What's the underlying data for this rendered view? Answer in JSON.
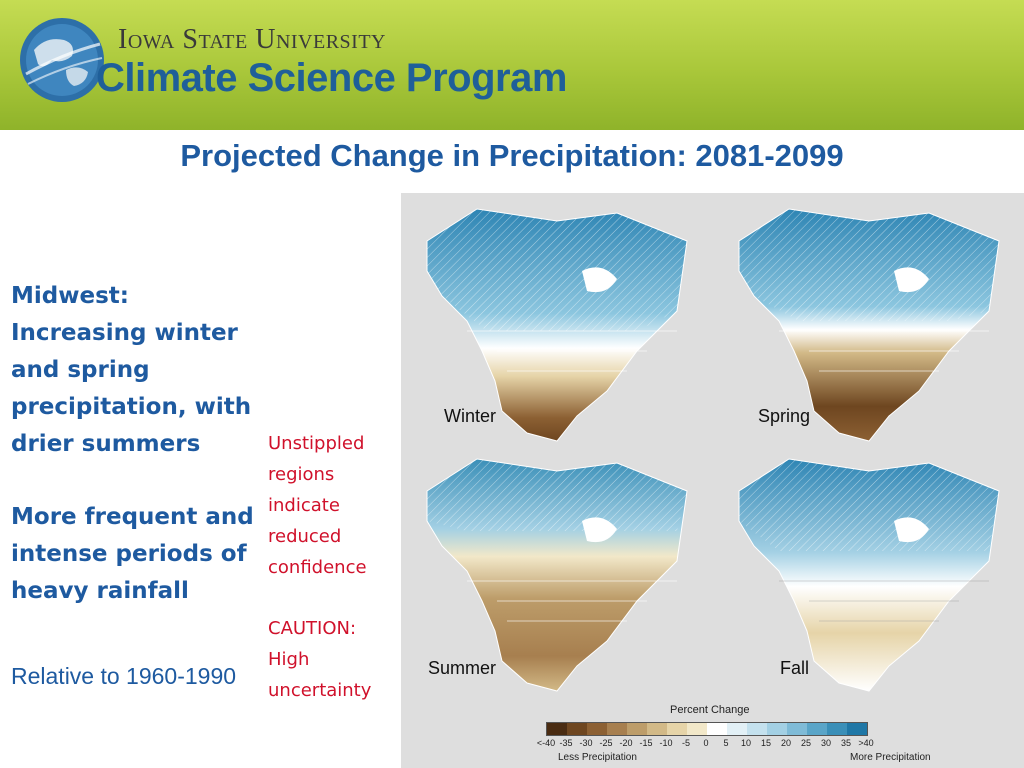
{
  "header": {
    "university": "Iowa State University",
    "program": "Climate Science Program"
  },
  "title": "Projected Change in Precipitation: 2081-2099",
  "left": {
    "heading": "Midwest:",
    "point1": "Increasing winter and spring precipitation, with drier summers",
    "point2": "More frequent and intense periods of heavy rainfall",
    "relative": "Relative to 1960-1990"
  },
  "notes": {
    "unstippled": "Unstippled regions indicate reduced confidence",
    "caution": "CAUTION: High uncertainty"
  },
  "maps": {
    "seasons": [
      "Winter",
      "Spring",
      "Summer",
      "Fall"
    ]
  },
  "legend": {
    "title": "Percent Change",
    "ticks": [
      "<-40",
      "-35",
      "-30",
      "-25",
      "-20",
      "-15",
      "-10",
      "-5",
      "0",
      "5",
      "10",
      "15",
      "20",
      "25",
      "30",
      "35",
      ">40"
    ],
    "colors": [
      "#4a2c12",
      "#6e4620",
      "#8c6033",
      "#a77f4f",
      "#bd9d6a",
      "#d2b987",
      "#e6d4a8",
      "#f2e8c9",
      "#ffffff",
      "#e2f0f6",
      "#c4e1ee",
      "#a3d0e4",
      "#7fbbd7",
      "#5aa5c8",
      "#3a8fb8",
      "#1f77a6"
    ],
    "low_label": "Less Precipitation",
    "high_label": "More Precipitation"
  }
}
